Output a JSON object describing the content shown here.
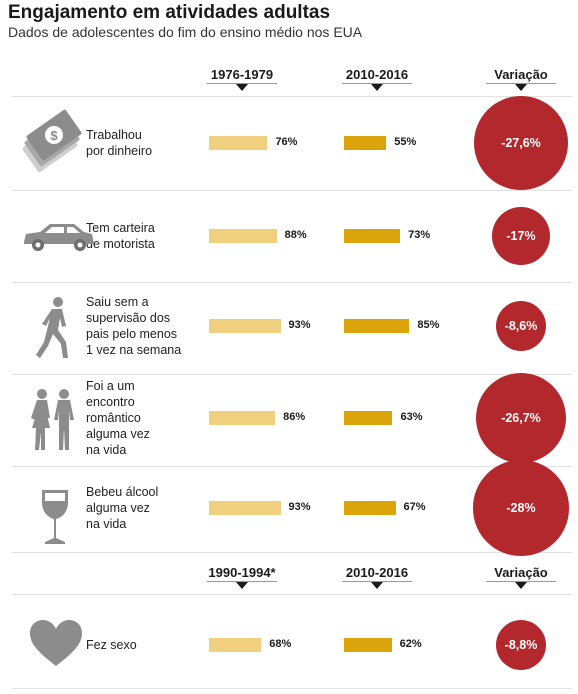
{
  "title": "Engajamento em atividades adultas",
  "subtitle": "Dados de adolescentes do fim do ensino médio nos EUA",
  "headers_top": {
    "period1": "1976-1979",
    "period2": "2010-2016",
    "change": "Variação"
  },
  "headers_bottom": {
    "period1": "1990-1994*",
    "period2": "2010-2016",
    "change": "Variação"
  },
  "colors": {
    "old_bar": "#f0d07e",
    "new_bar": "#dca40b",
    "circle": "#b3282d"
  },
  "chart_data": {
    "type": "bar",
    "categories": [
      "Trabalhou por dinheiro",
      "Tem carteira de motorista",
      "Saiu sem a supervisão dos pais pelo menos 1 vez na semana",
      "Foi a um encontro romântico alguma vez na vida",
      "Bebeu álcool alguma vez na vida",
      "Fez sexo"
    ],
    "series": [
      {
        "name": "1976-1979 / 1990-1994*",
        "values": [
          76,
          88,
          93,
          86,
          93,
          68
        ]
      },
      {
        "name": "2010-2016",
        "values": [
          55,
          73,
          85,
          63,
          67,
          62
        ]
      }
    ],
    "change": [
      -27.6,
      -17,
      -8.6,
      -26.7,
      -28,
      -8.8
    ],
    "unit": "%"
  },
  "rows": [
    {
      "icon": "money-icon",
      "label": [
        "Trabalhou",
        "por dinheiro"
      ],
      "old": 76,
      "new": 55,
      "old_label": "76%",
      "new_label": "55%",
      "change": -27.6,
      "change_label": "-27,6%"
    },
    {
      "icon": "car-icon",
      "label": [
        "Tem carteira",
        "de motorista"
      ],
      "old": 88,
      "new": 73,
      "old_label": "88%",
      "new_label": "73%",
      "change": -17,
      "change_label": "-17%"
    },
    {
      "icon": "walking-person-icon",
      "label": [
        "Saiu sem a",
        "supervisão dos",
        "pais pelo menos",
        "1 vez na semana"
      ],
      "old": 93,
      "new": 85,
      "old_label": "93%",
      "new_label": "85%",
      "change": -8.6,
      "change_label": "-8,6%"
    },
    {
      "icon": "couple-icon",
      "label": [
        "Foi a um",
        "encontro",
        "romântico",
        "alguma vez",
        "na vida"
      ],
      "old": 86,
      "new": 63,
      "old_label": "86%",
      "new_label": "63%",
      "change": -26.7,
      "change_label": "-26,7%"
    },
    {
      "icon": "wine-glass-icon",
      "label": [
        "Bebeu álcool",
        "alguma vez",
        "na vida"
      ],
      "old": 93,
      "new": 67,
      "old_label": "93%",
      "new_label": "67%",
      "change": -28,
      "change_label": "-28%"
    },
    {
      "icon": "heart-icon",
      "label": [
        "Fez sexo"
      ],
      "old": 68,
      "new": 62,
      "old_label": "68%",
      "new_label": "62%",
      "change": -8.8,
      "change_label": "-8,8%"
    }
  ]
}
